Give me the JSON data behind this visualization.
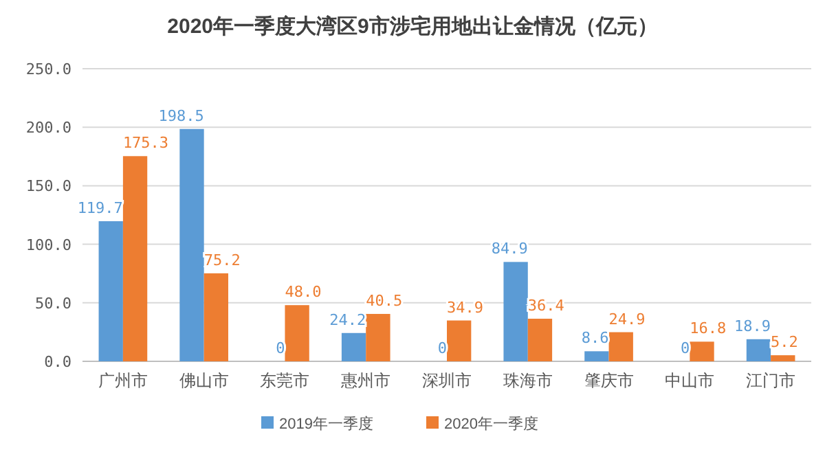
{
  "chart_data": {
    "type": "bar",
    "title": "2020年一季度大湾区9市涉宅用地出让金情况（亿元）",
    "categories": [
      "广州市",
      "佛山市",
      "东莞市",
      "惠州市",
      "深圳市",
      "珠海市",
      "肇庆市",
      "中山市",
      "江门市"
    ],
    "series": [
      {
        "name": "2019年一季度",
        "color": "#5b9bd5",
        "values": [
          119.7,
          198.5,
          0,
          24.2,
          0,
          84.9,
          8.6,
          0,
          18.9
        ],
        "value_labels": [
          "119.7",
          "198.5",
          "0",
          "24.2",
          "0",
          "84.9",
          "8.6",
          "0",
          "18.9"
        ]
      },
      {
        "name": "2020年一季度",
        "color": "#ed7d31",
        "values": [
          175.3,
          75.2,
          48.0,
          40.5,
          34.9,
          36.4,
          24.9,
          16.8,
          5.2
        ],
        "value_labels": [
          "175.3",
          "75.2",
          "48.0",
          "40.5",
          "34.9",
          "36.4",
          "24.9",
          "16.8",
          "5.2"
        ]
      }
    ],
    "ylim": [
      0,
      250
    ],
    "yticks": [
      {
        "value": 0,
        "label": "0.0"
      },
      {
        "value": 50,
        "label": "50.0"
      },
      {
        "value": 100,
        "label": "100.0"
      },
      {
        "value": 150,
        "label": "150.0"
      },
      {
        "value": 200,
        "label": "200.0"
      },
      {
        "value": 250,
        "label": "250.0"
      }
    ],
    "grid": "y",
    "legend": "bottom"
  }
}
